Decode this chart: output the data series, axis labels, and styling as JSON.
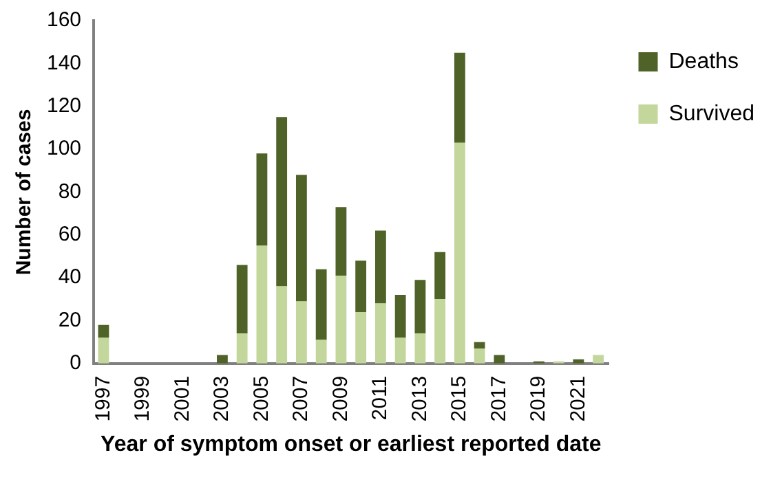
{
  "chart_data": {
    "type": "bar",
    "stacked": true,
    "xlabel": "Year of symptom onset or earliest reported date",
    "ylabel": "Number of cases",
    "categories": [
      "1997",
      null,
      "1999",
      null,
      "2001",
      null,
      "2003",
      null,
      "2005",
      null,
      "2007",
      null,
      "2009",
      null,
      "2011",
      null,
      "2013",
      null,
      "2015",
      null,
      "2017",
      null,
      "2019",
      null,
      "2021",
      null
    ],
    "series": [
      {
        "name": "Survived",
        "color": "#c3d69b",
        "values": [
          12,
          0,
          0,
          0,
          0,
          0,
          0,
          14,
          55,
          36,
          29,
          11,
          41,
          24,
          28,
          12,
          14,
          30,
          103,
          7,
          0,
          0,
          0,
          1,
          0,
          4
        ]
      },
      {
        "name": "Deaths",
        "color": "#4f6228",
        "values": [
          6,
          0,
          0,
          0,
          0,
          0,
          4,
          32,
          43,
          79,
          59,
          33,
          32,
          24,
          34,
          20,
          25,
          22,
          42,
          3,
          4,
          0,
          1,
          0,
          2,
          0
        ]
      }
    ],
    "ylim": [
      0,
      160
    ],
    "yticks": [
      0,
      20,
      40,
      60,
      80,
      100,
      120,
      140,
      160
    ],
    "grid": false,
    "legend": "top right"
  }
}
